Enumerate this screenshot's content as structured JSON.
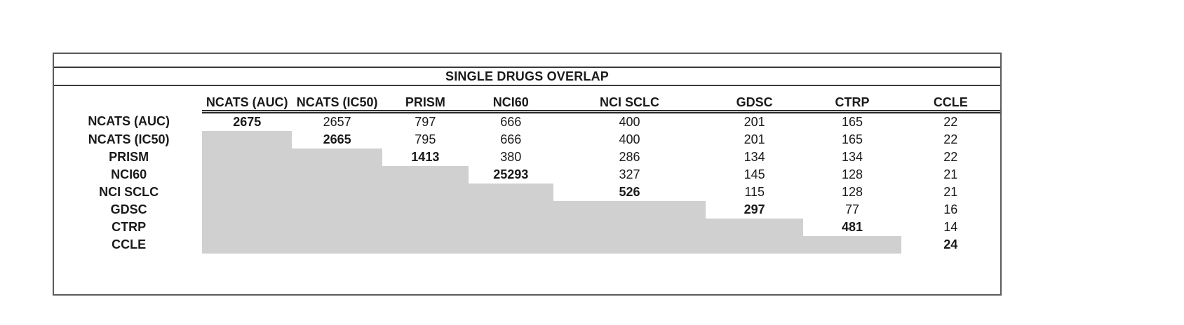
{
  "chart_data": {
    "type": "table",
    "title": "SINGLE DRUGS OVERLAP",
    "col_labels": [
      "NCATS (AUC)",
      "NCATS (IC50)",
      "PRISM",
      "NCI60",
      "NCI SCLC",
      "GDSC",
      "CTRP",
      "CCLE"
    ],
    "row_labels": [
      "NCATS (AUC)",
      "NCATS (IC50)",
      "PRISM",
      "NCI60",
      "NCI SCLC",
      "GDSC",
      "CTRP",
      "CCLE"
    ],
    "matrix": [
      [
        2675,
        2657,
        797,
        666,
        400,
        201,
        165,
        22
      ],
      [
        null,
        2665,
        795,
        666,
        400,
        201,
        165,
        22
      ],
      [
        null,
        null,
        1413,
        380,
        286,
        134,
        134,
        22
      ],
      [
        null,
        null,
        null,
        25293,
        327,
        145,
        128,
        21
      ],
      [
        null,
        null,
        null,
        null,
        526,
        115,
        128,
        21
      ],
      [
        null,
        null,
        null,
        null,
        null,
        297,
        77,
        16
      ],
      [
        null,
        null,
        null,
        null,
        null,
        null,
        481,
        14
      ],
      [
        null,
        null,
        null,
        null,
        null,
        null,
        null,
        24
      ]
    ],
    "layout_hints": {
      "lower_triangle_shaded": true,
      "shaded_color": "#d1d0d0",
      "diagonal_bold": true,
      "header_rule": "double",
      "gridlines": "horizontal-only",
      "legend": "none"
    }
  }
}
